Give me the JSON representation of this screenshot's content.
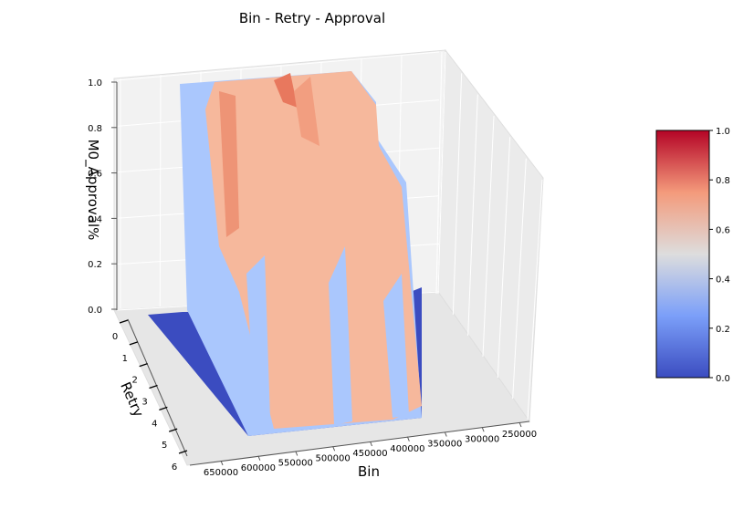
{
  "chart_data": {
    "type": "surface3d",
    "title": "Bin - Retry - Approval",
    "xlabel": "Bin",
    "ylabel": "Retry",
    "zlabel": "M0_Approval%",
    "x_ticks": [
      "650000",
      "600000",
      "550000",
      "500000",
      "450000",
      "400000",
      "350000",
      "300000",
      "250000"
    ],
    "y_ticks": [
      "0",
      "1",
      "2",
      "3",
      "4",
      "5",
      "6"
    ],
    "z_ticks": [
      "0.0",
      "0.2",
      "0.4",
      "0.6",
      "0.8",
      "1.0"
    ],
    "x_range": [
      250000,
      650000
    ],
    "y_range": [
      0,
      6
    ],
    "z_range": [
      0,
      1.0
    ],
    "colormap": "coolwarm",
    "colorbar": {
      "ticks": [
        "0.0",
        "0.2",
        "0.4",
        "0.6",
        "0.8",
        "1.0"
      ],
      "range": [
        0,
        1.0
      ],
      "low_color": "#3b4cc0",
      "mid_color": "#dddddd",
      "high_color": "#b40426"
    },
    "surface": {
      "bin_range": [
        400000,
        600000
      ],
      "retry_range": [
        0,
        6
      ],
      "approval_plateau_range": [
        0.6,
        0.9
      ],
      "approval_floor": 0.0
    },
    "grid": true
  }
}
